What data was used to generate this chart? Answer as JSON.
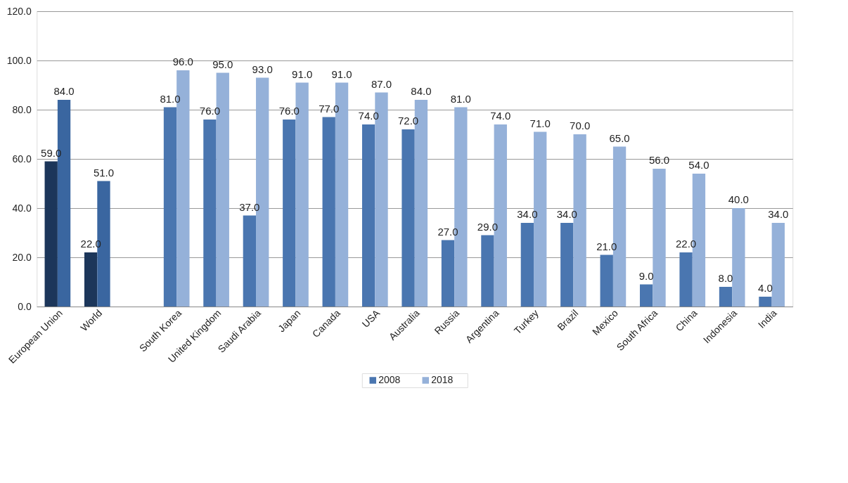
{
  "chart_data": {
    "type": "bar",
    "categories": [
      "European Union",
      "World",
      null,
      "South Korea",
      "United Kingdom",
      "Saudi Arabia",
      "Japan",
      "Canada",
      "USA",
      "Australia",
      "Russia",
      "Argentina",
      "Turkey",
      "Brazil",
      "Mexico",
      "South Africa",
      "China",
      "Indonesia",
      "India"
    ],
    "series": [
      {
        "name": "2008",
        "color": "#4a76b0",
        "colors": [
          "#1c365a",
          "#1c365a",
          null,
          "#4a76b0",
          "#4a76b0",
          "#4a76b0",
          "#4a76b0",
          "#4a76b0",
          "#4a76b0",
          "#4a76b0",
          "#4a76b0",
          "#4a76b0",
          "#4a76b0",
          "#4a76b0",
          "#4a76b0",
          "#4a76b0",
          "#4a76b0",
          "#4a76b0",
          "#4a76b0"
        ],
        "values": [
          59,
          22,
          null,
          81,
          76,
          37,
          76,
          77,
          74,
          72,
          27,
          29,
          34,
          34,
          21,
          9,
          22,
          8,
          4
        ],
        "value_labels": [
          "59.0",
          "22.0",
          null,
          "81.0",
          "76.0",
          "37.0",
          "76.0",
          "77.0",
          "74.0",
          "72.0",
          "27.0",
          "29.0",
          "34.0",
          "34.0",
          "21.0",
          "9.0",
          "22.0",
          "8.0",
          "4.0"
        ]
      },
      {
        "name": "2018",
        "color": "#95b1d9",
        "colors": [
          "#3a66a0",
          "#3a66a0",
          null,
          "#95b1d9",
          "#95b1d9",
          "#95b1d9",
          "#95b1d9",
          "#95b1d9",
          "#95b1d9",
          "#95b1d9",
          "#95b1d9",
          "#95b1d9",
          "#95b1d9",
          "#95b1d9",
          "#95b1d9",
          "#95b1d9",
          "#95b1d9",
          "#95b1d9",
          "#95b1d9"
        ],
        "values": [
          84,
          51,
          null,
          96,
          95,
          93,
          91,
          91,
          87,
          84,
          81,
          74,
          71,
          70,
          65,
          56,
          54,
          40,
          34
        ],
        "value_labels": [
          "84.0",
          "51.0",
          null,
          "96.0",
          "95.0",
          "93.0",
          "91.0",
          "91.0",
          "87.0",
          "84.0",
          "81.0",
          "74.0",
          "71.0",
          "70.0",
          "65.0",
          "56.0",
          "54.0",
          "40.0",
          "34.0"
        ]
      }
    ],
    "ylim": [
      0,
      120
    ],
    "yticks": [
      {
        "value": 0,
        "label": "0.0"
      },
      {
        "value": 20,
        "label": "20.0"
      },
      {
        "value": 40,
        "label": "40.0"
      },
      {
        "value": 60,
        "label": "60.0"
      },
      {
        "value": 80,
        "label": "80.0"
      },
      {
        "value": 100,
        "label": "100.0"
      },
      {
        "value": 120,
        "label": "120.0"
      }
    ],
    "grid": "y",
    "legend": "bottom"
  }
}
